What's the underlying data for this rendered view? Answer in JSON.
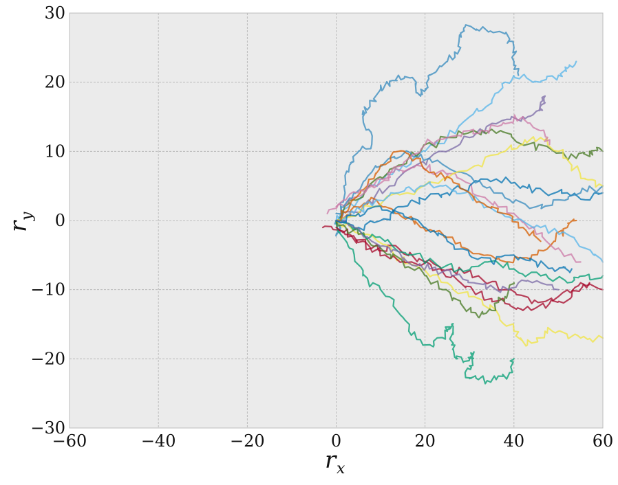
{
  "chart_data": {
    "type": "line",
    "title": "",
    "xlabel": "r",
    "xlabel_sub": "x",
    "ylabel": "r",
    "ylabel_sub": "y",
    "xlim": [
      -60,
      60
    ],
    "ylim": [
      -30,
      30
    ],
    "xticks": [
      -60,
      -40,
      -20,
      0,
      20,
      40,
      60
    ],
    "yticks": [
      -30,
      -20,
      -10,
      0,
      10,
      20,
      30
    ],
    "xtick_labels": [
      "−60",
      "−40",
      "−20",
      "0",
      "20",
      "40",
      "60"
    ],
    "ytick_labels": [
      "−30",
      "−20",
      "−10",
      "0",
      "10",
      "20",
      "30"
    ],
    "grid": true,
    "legend": "none",
    "colors": {
      "background": "#ebebeb",
      "grid": "#b0b0b0",
      "palette": [
        "#348abd",
        "#7a68a6",
        "#a60628",
        "#467821",
        "#d55e00",
        "#cc79a7",
        "#56b4e9",
        "#009e73",
        "#f0e442",
        "#0072b2"
      ]
    },
    "series": [
      {
        "color": "#348abd",
        "points": [
          [
            0,
            0
          ],
          [
            1,
            -1
          ],
          [
            0,
            -2
          ],
          [
            2,
            4
          ],
          [
            3,
            8
          ],
          [
            5,
            10
          ],
          [
            8,
            11
          ],
          [
            6,
            15
          ],
          [
            7,
            16
          ],
          [
            10,
            19
          ],
          [
            12,
            20
          ],
          [
            14,
            21
          ],
          [
            18,
            20
          ],
          [
            19,
            18
          ],
          [
            20,
            19
          ],
          [
            21,
            21
          ],
          [
            25,
            23
          ],
          [
            28,
            25
          ],
          [
            28,
            27
          ],
          [
            29,
            28
          ],
          [
            33,
            28
          ],
          [
            38,
            27
          ],
          [
            40,
            25
          ],
          [
            40,
            23
          ],
          [
            41,
            21
          ]
        ]
      },
      {
        "color": "#56b4e9",
        "points": [
          [
            0,
            0
          ],
          [
            5,
            3
          ],
          [
            10,
            6
          ],
          [
            15,
            8
          ],
          [
            20,
            10
          ],
          [
            25,
            12
          ],
          [
            30,
            15
          ],
          [
            35,
            17
          ],
          [
            38,
            20
          ],
          [
            42,
            21
          ],
          [
            46,
            20
          ],
          [
            50,
            21
          ],
          [
            52,
            22
          ],
          [
            54,
            23
          ]
        ]
      },
      {
        "color": "#7a68a6",
        "points": [
          [
            0,
            0
          ],
          [
            6,
            2
          ],
          [
            12,
            5
          ],
          [
            18,
            8
          ],
          [
            24,
            10
          ],
          [
            30,
            12
          ],
          [
            36,
            14
          ],
          [
            42,
            15
          ],
          [
            46,
            16
          ],
          [
            47,
            18
          ],
          [
            46,
            16
          ]
        ]
      },
      {
        "color": "#a60628",
        "points": [
          [
            -3,
            -1
          ],
          [
            2,
            -2
          ],
          [
            8,
            -4
          ],
          [
            14,
            -4
          ],
          [
            20,
            -6
          ],
          [
            26,
            -7
          ],
          [
            32,
            -8
          ],
          [
            38,
            -10
          ],
          [
            44,
            -12
          ],
          [
            50,
            -11
          ],
          [
            55,
            -9
          ],
          [
            60,
            -10
          ]
        ]
      },
      {
        "color": "#467821",
        "points": [
          [
            0,
            0
          ],
          [
            4,
            3
          ],
          [
            9,
            6
          ],
          [
            14,
            8
          ],
          [
            19,
            10
          ],
          [
            25,
            12
          ],
          [
            31,
            13
          ],
          [
            37,
            13
          ],
          [
            43,
            11
          ],
          [
            49,
            10
          ],
          [
            54,
            9
          ],
          [
            57,
            10
          ],
          [
            60,
            10
          ]
        ]
      },
      {
        "color": "#009e73",
        "points": [
          [
            0,
            0
          ],
          [
            3,
            -4
          ],
          [
            6,
            -8
          ],
          [
            10,
            -10
          ],
          [
            15,
            -14
          ],
          [
            18,
            -17
          ],
          [
            22,
            -18
          ],
          [
            25,
            -16
          ],
          [
            26,
            -15
          ],
          [
            26,
            -18
          ],
          [
            27,
            -20
          ],
          [
            30,
            -20
          ],
          [
            31,
            -19
          ],
          [
            30,
            -21
          ],
          [
            29,
            -22
          ],
          [
            32,
            -23
          ],
          [
            36,
            -23
          ],
          [
            39,
            -22
          ],
          [
            40,
            -20
          ]
        ]
      },
      {
        "color": "#f0e442",
        "points": [
          [
            0,
            0
          ],
          [
            7,
            -2
          ],
          [
            13,
            -5
          ],
          [
            19,
            -7
          ],
          [
            25,
            -9
          ],
          [
            31,
            -11
          ],
          [
            36,
            -13
          ],
          [
            40,
            -16
          ],
          [
            43,
            -18
          ],
          [
            47,
            -16
          ],
          [
            50,
            -16
          ],
          [
            55,
            -17
          ],
          [
            60,
            -17
          ]
        ]
      },
      {
        "color": "#d55e00",
        "points": [
          [
            0,
            0
          ],
          [
            4,
            2
          ],
          [
            9,
            3
          ],
          [
            14,
            1
          ],
          [
            19,
            -1
          ],
          [
            24,
            -2
          ],
          [
            29,
            -4
          ],
          [
            34,
            -5
          ],
          [
            39,
            -6
          ],
          [
            44,
            -5
          ],
          [
            49,
            -3
          ],
          [
            52,
            -1
          ],
          [
            54,
            0
          ]
        ]
      },
      {
        "color": "#cc79a7",
        "points": [
          [
            -2,
            1
          ],
          [
            3,
            3
          ],
          [
            8,
            5
          ],
          [
            13,
            7
          ],
          [
            18,
            8
          ],
          [
            23,
            7
          ],
          [
            28,
            6
          ],
          [
            34,
            3
          ],
          [
            40,
            1
          ],
          [
            45,
            -2
          ],
          [
            50,
            -4
          ],
          [
            55,
            -6
          ]
        ]
      },
      {
        "color": "#0072b2",
        "points": [
          [
            0,
            0
          ],
          [
            5,
            -1
          ],
          [
            10,
            0
          ],
          [
            15,
            2
          ],
          [
            20,
            3
          ],
          [
            25,
            4
          ],
          [
            30,
            5
          ],
          [
            36,
            6
          ],
          [
            42,
            5
          ],
          [
            47,
            4
          ],
          [
            52,
            4
          ],
          [
            56,
            3
          ],
          [
            60,
            4
          ]
        ]
      },
      {
        "color": "#348abd",
        "points": [
          [
            0,
            1
          ],
          [
            4,
            4
          ],
          [
            8,
            7
          ],
          [
            12,
            9
          ],
          [
            16,
            10
          ],
          [
            21,
            9
          ],
          [
            27,
            7
          ],
          [
            33,
            5
          ],
          [
            39,
            3
          ],
          [
            45,
            2
          ],
          [
            50,
            3
          ],
          [
            55,
            4
          ],
          [
            60,
            5
          ]
        ]
      },
      {
        "color": "#a60628",
        "points": [
          [
            0,
            -1
          ],
          [
            6,
            -3
          ],
          [
            11,
            -5
          ],
          [
            17,
            -6
          ],
          [
            23,
            -7
          ],
          [
            28,
            -9
          ],
          [
            33,
            -11
          ],
          [
            38,
            -12
          ],
          [
            42,
            -13
          ],
          [
            48,
            -12
          ],
          [
            53,
            -11
          ],
          [
            57,
            -9
          ]
        ]
      },
      {
        "color": "#467821",
        "points": [
          [
            0,
            0
          ],
          [
            5,
            -2
          ],
          [
            10,
            -4
          ],
          [
            15,
            -6
          ],
          [
            20,
            -8
          ],
          [
            24,
            -10
          ],
          [
            28,
            -12
          ],
          [
            32,
            -14
          ],
          [
            35,
            -13
          ],
          [
            38,
            -11
          ],
          [
            40,
            -9
          ]
        ]
      },
      {
        "color": "#f0e442",
        "points": [
          [
            0,
            0
          ],
          [
            8,
            2
          ],
          [
            16,
            4
          ],
          [
            24,
            6
          ],
          [
            32,
            8
          ],
          [
            38,
            10
          ],
          [
            42,
            11
          ],
          [
            46,
            12
          ],
          [
            50,
            10
          ],
          [
            53,
            8
          ],
          [
            56,
            6
          ],
          [
            60,
            5
          ]
        ]
      },
      {
        "color": "#56b4e9",
        "points": [
          [
            0,
            0
          ],
          [
            4,
            1
          ],
          [
            9,
            3
          ],
          [
            14,
            4
          ],
          [
            19,
            5
          ],
          [
            24,
            5
          ],
          [
            29,
            4
          ],
          [
            34,
            2
          ],
          [
            40,
            0
          ],
          [
            46,
            -1
          ],
          [
            52,
            -2
          ],
          [
            56,
            -4
          ],
          [
            60,
            -6
          ]
        ]
      },
      {
        "color": "#009e73",
        "points": [
          [
            1,
            0
          ],
          [
            6,
            -2
          ],
          [
            11,
            -3
          ],
          [
            17,
            -5
          ],
          [
            22,
            -6
          ],
          [
            28,
            -7
          ],
          [
            34,
            -6
          ],
          [
            40,
            -7
          ],
          [
            46,
            -8
          ],
          [
            52,
            -9
          ],
          [
            56,
            -8
          ],
          [
            60,
            -8
          ]
        ]
      },
      {
        "color": "#d55e00",
        "points": [
          [
            0,
            0
          ],
          [
            3,
            2
          ],
          [
            7,
            5
          ],
          [
            10,
            8
          ],
          [
            14,
            10
          ],
          [
            18,
            9
          ],
          [
            22,
            7
          ],
          [
            26,
            6
          ],
          [
            30,
            4
          ],
          [
            34,
            2
          ],
          [
            38,
            1
          ],
          [
            42,
            -1
          ],
          [
            46,
            -3
          ]
        ]
      },
      {
        "color": "#7a68a6",
        "points": [
          [
            0,
            0
          ],
          [
            4,
            -1
          ],
          [
            8,
            -3
          ],
          [
            12,
            -4
          ],
          [
            16,
            -6
          ],
          [
            21,
            -7
          ],
          [
            26,
            -8
          ],
          [
            31,
            -9
          ],
          [
            36,
            -10
          ],
          [
            41,
            -9
          ],
          [
            46,
            -9
          ],
          [
            50,
            -10
          ]
        ]
      },
      {
        "color": "#cc79a7",
        "points": [
          [
            0,
            2
          ],
          [
            5,
            4
          ],
          [
            10,
            6
          ],
          [
            15,
            8
          ],
          [
            20,
            11
          ],
          [
            25,
            12
          ],
          [
            30,
            13
          ],
          [
            34,
            13
          ],
          [
            38,
            14
          ],
          [
            42,
            15
          ],
          [
            46,
            13
          ],
          [
            48,
            11
          ]
        ]
      },
      {
        "color": "#0072b2",
        "points": [
          [
            0,
            0
          ],
          [
            5,
            1
          ],
          [
            10,
            2
          ],
          [
            15,
            1
          ],
          [
            20,
            -1
          ],
          [
            25,
            -3
          ],
          [
            30,
            -5
          ],
          [
            35,
            -6
          ],
          [
            40,
            -5
          ],
          [
            45,
            -6
          ],
          [
            50,
            -7
          ],
          [
            53,
            -7
          ]
        ]
      }
    ]
  }
}
